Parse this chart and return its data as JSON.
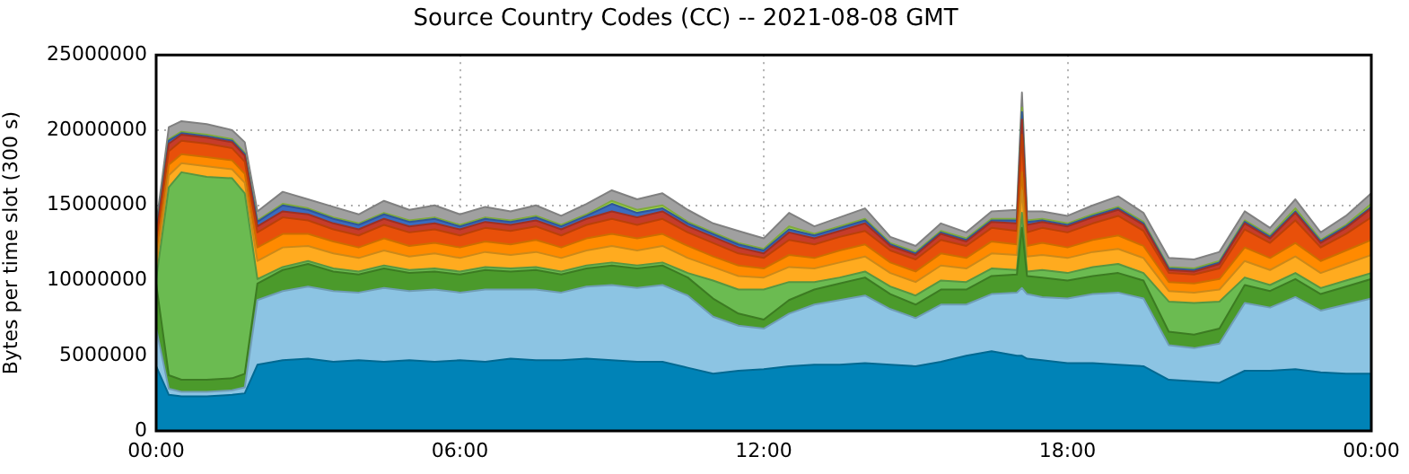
{
  "chart_data": {
    "type": "area",
    "stacked": true,
    "title": "Source Country Codes (CC) -- 2021-08-08 GMT",
    "ylabel": "Bytes per time slot (300 s)",
    "x": [
      0,
      0.25,
      0.5,
      1,
      1.5,
      1.75,
      2,
      2.5,
      3,
      3.5,
      4,
      4.5,
      5,
      5.5,
      6,
      6.5,
      7,
      7.5,
      8,
      8.5,
      9,
      9.5,
      10,
      10.5,
      11,
      11.5,
      12,
      12.5,
      13,
      13.5,
      14,
      14.5,
      15,
      15.5,
      16,
      16.5,
      17,
      17.1,
      17.2,
      17.5,
      18,
      18.5,
      19,
      19.5,
      20,
      20.5,
      21,
      21.5,
      22,
      22.5,
      23,
      23.5,
      24
    ],
    "xlim": [
      0,
      24
    ],
    "xticks": [
      {
        "value": 0,
        "label": "00:00"
      },
      {
        "value": 6,
        "label": "06:00"
      },
      {
        "value": 12,
        "label": "12:00"
      },
      {
        "value": 18,
        "label": "18:00"
      },
      {
        "value": 24,
        "label": "00:00"
      }
    ],
    "ylim": [
      0,
      25000000
    ],
    "yticks": [
      0,
      5000000,
      10000000,
      15000000,
      20000000,
      25000000
    ],
    "grid": true,
    "legend": false,
    "marker": "none",
    "series": [
      {
        "color": "#0083b7",
        "values": [
          4300000,
          2400000,
          2300000,
          2300000,
          2400000,
          2500000,
          4400000,
          4700000,
          4800000,
          4600000,
          4700000,
          4600000,
          4700000,
          4600000,
          4700000,
          4600000,
          4800000,
          4700000,
          4700000,
          4800000,
          4700000,
          4600000,
          4600000,
          4200000,
          3800000,
          4000000,
          4100000,
          4300000,
          4400000,
          4400000,
          4500000,
          4400000,
          4300000,
          4600000,
          5000000,
          5300000,
          5000000,
          5000000,
          4800000,
          4700000,
          4500000,
          4500000,
          4400000,
          4300000,
          3400000,
          3300000,
          3200000,
          4000000,
          4000000,
          4100000,
          3900000,
          3800000,
          3800000
        ]
      },
      {
        "color": "#8cc4e3",
        "values": [
          2500000,
          400000,
          300000,
          300000,
          300000,
          400000,
          4300000,
          4600000,
          4800000,
          4700000,
          4500000,
          4900000,
          4600000,
          4800000,
          4500000,
          4800000,
          4600000,
          4700000,
          4500000,
          4800000,
          5000000,
          4900000,
          5100000,
          4800000,
          3800000,
          3000000,
          2700000,
          3500000,
          4000000,
          4300000,
          4500000,
          3700000,
          3200000,
          3800000,
          3400000,
          3800000,
          4200000,
          4500000,
          4300000,
          4200000,
          4300000,
          4600000,
          4800000,
          4500000,
          2300000,
          2200000,
          2600000,
          4500000,
          4200000,
          4800000,
          4100000,
          4600000,
          5000000
        ]
      },
      {
        "color": "#4b9a2b",
        "values": [
          3000000,
          900000,
          800000,
          800000,
          800000,
          900000,
          1100000,
          1400000,
          1500000,
          1300000,
          1200000,
          1300000,
          1200000,
          1200000,
          1200000,
          1300000,
          1200000,
          1300000,
          1200000,
          1200000,
          1300000,
          1300000,
          1300000,
          1200000,
          1200000,
          800000,
          600000,
          900000,
          1000000,
          1100000,
          1200000,
          1000000,
          900000,
          1000000,
          1000000,
          1200000,
          1200000,
          4000000,
          1200000,
          1300000,
          1200000,
          1200000,
          1300000,
          1200000,
          900000,
          900000,
          1000000,
          1200000,
          1100000,
          1200000,
          1100000,
          1200000,
          1300000
        ]
      },
      {
        "color": "#6bbb51",
        "values": [
          300000,
          12500000,
          13800000,
          13500000,
          13300000,
          12000000,
          300000,
          200000,
          200000,
          200000,
          200000,
          200000,
          200000,
          200000,
          200000,
          200000,
          200000,
          200000,
          200000,
          200000,
          200000,
          200000,
          200000,
          300000,
          1200000,
          1600000,
          2000000,
          1200000,
          500000,
          400000,
          400000,
          500000,
          600000,
          600000,
          500000,
          500000,
          300000,
          1000000,
          300000,
          500000,
          500000,
          600000,
          600000,
          500000,
          2000000,
          2100000,
          1800000,
          500000,
          400000,
          400000,
          400000,
          400000,
          400000
        ]
      },
      {
        "color": "#ffab1f",
        "values": [
          900000,
          800000,
          600000,
          700000,
          600000,
          700000,
          1200000,
          1300000,
          1000000,
          1000000,
          900000,
          1000000,
          900000,
          1000000,
          900000,
          1000000,
          900000,
          1000000,
          900000,
          1000000,
          1100000,
          1000000,
          1100000,
          1000000,
          900000,
          900000,
          800000,
          1000000,
          900000,
          1000000,
          1000000,
          900000,
          900000,
          1000000,
          900000,
          1000000,
          1000000,
          1500000,
          1000000,
          1000000,
          1000000,
          1000000,
          1000000,
          1000000,
          700000,
          700000,
          800000,
          1100000,
          1000000,
          1100000,
          1000000,
          1100000,
          1200000
        ]
      },
      {
        "color": "#ff8a00",
        "values": [
          700000,
          700000,
          600000,
          600000,
          600000,
          600000,
          900000,
          900000,
          800000,
          800000,
          700000,
          800000,
          700000,
          700000,
          700000,
          700000,
          700000,
          800000,
          700000,
          800000,
          800000,
          800000,
          800000,
          800000,
          700000,
          700000,
          600000,
          800000,
          700000,
          800000,
          800000,
          700000,
          700000,
          800000,
          700000,
          800000,
          700000,
          1200000,
          700000,
          800000,
          700000,
          800000,
          900000,
          800000,
          600000,
          600000,
          700000,
          900000,
          800000,
          900000,
          800000,
          900000,
          1000000
        ]
      },
      {
        "color": "#e8500a",
        "values": [
          900000,
          900000,
          900000,
          900000,
          800000,
          800000,
          1000000,
          1100000,
          900000,
          800000,
          800000,
          900000,
          900000,
          900000,
          800000,
          900000,
          900000,
          900000,
          800000,
          900000,
          1000000,
          900000,
          1000000,
          900000,
          900000,
          800000,
          700000,
          1000000,
          900000,
          900000,
          900000,
          800000,
          800000,
          900000,
          800000,
          900000,
          900000,
          2500000,
          900000,
          1000000,
          1000000,
          1100000,
          1300000,
          1000000,
          600000,
          600000,
          700000,
          1200000,
          1000000,
          1500000,
          900000,
          1100000,
          1500000
        ]
      },
      {
        "color": "#c63c2a",
        "values": [
          300000,
          500000,
          400000,
          400000,
          400000,
          400000,
          400000,
          400000,
          400000,
          400000,
          400000,
          400000,
          400000,
          400000,
          400000,
          400000,
          400000,
          400000,
          400000,
          400000,
          500000,
          500000,
          500000,
          400000,
          400000,
          400000,
          300000,
          500000,
          400000,
          400000,
          500000,
          300000,
          300000,
          400000,
          300000,
          400000,
          500000,
          1000000,
          500000,
          400000,
          400000,
          400000,
          400000,
          400000,
          200000,
          200000,
          300000,
          400000,
          300000,
          500000,
          300000,
          400000,
          600000
        ]
      },
      {
        "color": "#3b6cbf",
        "values": [
          200000,
          200000,
          100000,
          100000,
          100000,
          100000,
          300000,
          400000,
          300000,
          300000,
          300000,
          300000,
          300000,
          300000,
          200000,
          200000,
          200000,
          200000,
          200000,
          200000,
          500000,
          300000,
          200000,
          200000,
          200000,
          200000,
          200000,
          200000,
          200000,
          200000,
          200000,
          100000,
          100000,
          100000,
          100000,
          100000,
          200000,
          500000,
          200000,
          100000,
          100000,
          100000,
          100000,
          100000,
          100000,
          100000,
          100000,
          100000,
          100000,
          100000,
          100000,
          100000,
          100000
        ]
      },
      {
        "color": "#9fd64a",
        "values": [
          100000,
          100000,
          100000,
          100000,
          100000,
          100000,
          100000,
          100000,
          100000,
          100000,
          100000,
          100000,
          100000,
          100000,
          100000,
          100000,
          100000,
          100000,
          100000,
          100000,
          200000,
          200000,
          200000,
          100000,
          100000,
          100000,
          100000,
          200000,
          100000,
          100000,
          100000,
          100000,
          100000,
          100000,
          100000,
          100000,
          100000,
          300000,
          100000,
          100000,
          100000,
          100000,
          100000,
          100000,
          100000,
          100000,
          100000,
          100000,
          100000,
          200000,
          100000,
          100000,
          200000
        ]
      },
      {
        "color": "#a0a0a0",
        "values": [
          500000,
          800000,
          700000,
          700000,
          600000,
          700000,
          600000,
          800000,
          600000,
          700000,
          600000,
          800000,
          700000,
          800000,
          700000,
          700000,
          600000,
          700000,
          600000,
          700000,
          700000,
          700000,
          800000,
          800000,
          600000,
          800000,
          700000,
          900000,
          500000,
          600000,
          700000,
          400000,
          400000,
          500000,
          400000,
          500000,
          600000,
          1000000,
          600000,
          500000,
          500000,
          600000,
          700000,
          600000,
          600000,
          600000,
          600000,
          600000,
          500000,
          600000,
          500000,
          600000,
          700000
        ]
      }
    ]
  }
}
